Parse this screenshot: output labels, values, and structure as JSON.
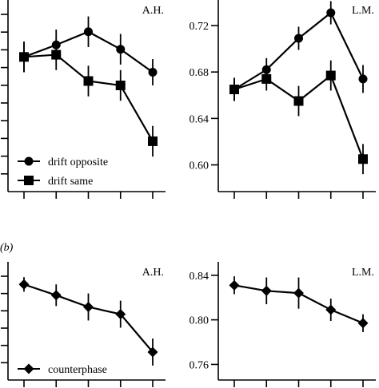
{
  "panel_b_label": "(b)",
  "chart_data": [
    {
      "id": "top-left",
      "type": "line",
      "title": "A.H.",
      "x_positions": 5,
      "ylim": [
        0.57,
        0.745
      ],
      "yticks": [],
      "ytick_count": 10,
      "legend": "lower-left",
      "series": [
        {
          "name": "drift opposite",
          "marker": "circle",
          "values": [
            0.693,
            0.704,
            0.716,
            0.7,
            0.679
          ],
          "errors": [
            0.014,
            0.014,
            0.014,
            0.014,
            0.012
          ]
        },
        {
          "name": "drift same",
          "marker": "square",
          "values": [
            0.693,
            0.695,
            0.671,
            0.667,
            0.616
          ],
          "errors": [
            0.014,
            0.014,
            0.014,
            0.014,
            0.014
          ]
        }
      ]
    },
    {
      "id": "top-right",
      "type": "line",
      "title": "L.M.",
      "x_positions": 5,
      "ylim": [
        0.577,
        0.742
      ],
      "yticks": [
        "0.60",
        "0.64",
        "0.68",
        "0.72"
      ],
      "ytick_values": [
        0.6,
        0.64,
        0.68,
        0.72
      ],
      "series": [
        {
          "name": "drift opposite",
          "marker": "circle",
          "values": [
            0.665,
            0.682,
            0.709,
            0.731,
            0.674
          ],
          "errors": [
            0.01,
            0.01,
            0.01,
            0.01,
            0.012
          ]
        },
        {
          "name": "drift same",
          "marker": "square",
          "values": [
            0.665,
            0.674,
            0.655,
            0.677,
            0.605
          ],
          "errors": [
            0.01,
            0.01,
            0.013,
            0.013,
            0.013
          ]
        }
      ]
    },
    {
      "id": "bottom-left",
      "type": "line",
      "title": "A.H.",
      "x_positions": 5,
      "ylim": [
        0.732,
        0.863
      ],
      "yticks": [],
      "ytick_count": 6,
      "legend": "lower-left",
      "series": [
        {
          "name": "counterphase",
          "marker": "diamond",
          "values": [
            0.838,
            0.826,
            0.813,
            0.805,
            0.763
          ],
          "errors": [
            0.008,
            0.012,
            0.015,
            0.015,
            0.015
          ]
        }
      ]
    },
    {
      "id": "bottom-right",
      "type": "line",
      "title": "L.M.",
      "x_positions": 5,
      "ylim": [
        0.746,
        0.852
      ],
      "yticks": [
        "0.76",
        "0.80",
        "0.84"
      ],
      "ytick_values": [
        0.76,
        0.8,
        0.84
      ],
      "series": [
        {
          "name": "counterphase",
          "marker": "diamond",
          "values": [
            0.831,
            0.826,
            0.824,
            0.809,
            0.797
          ],
          "errors": [
            0.008,
            0.012,
            0.014,
            0.01,
            0.008
          ]
        }
      ]
    }
  ]
}
